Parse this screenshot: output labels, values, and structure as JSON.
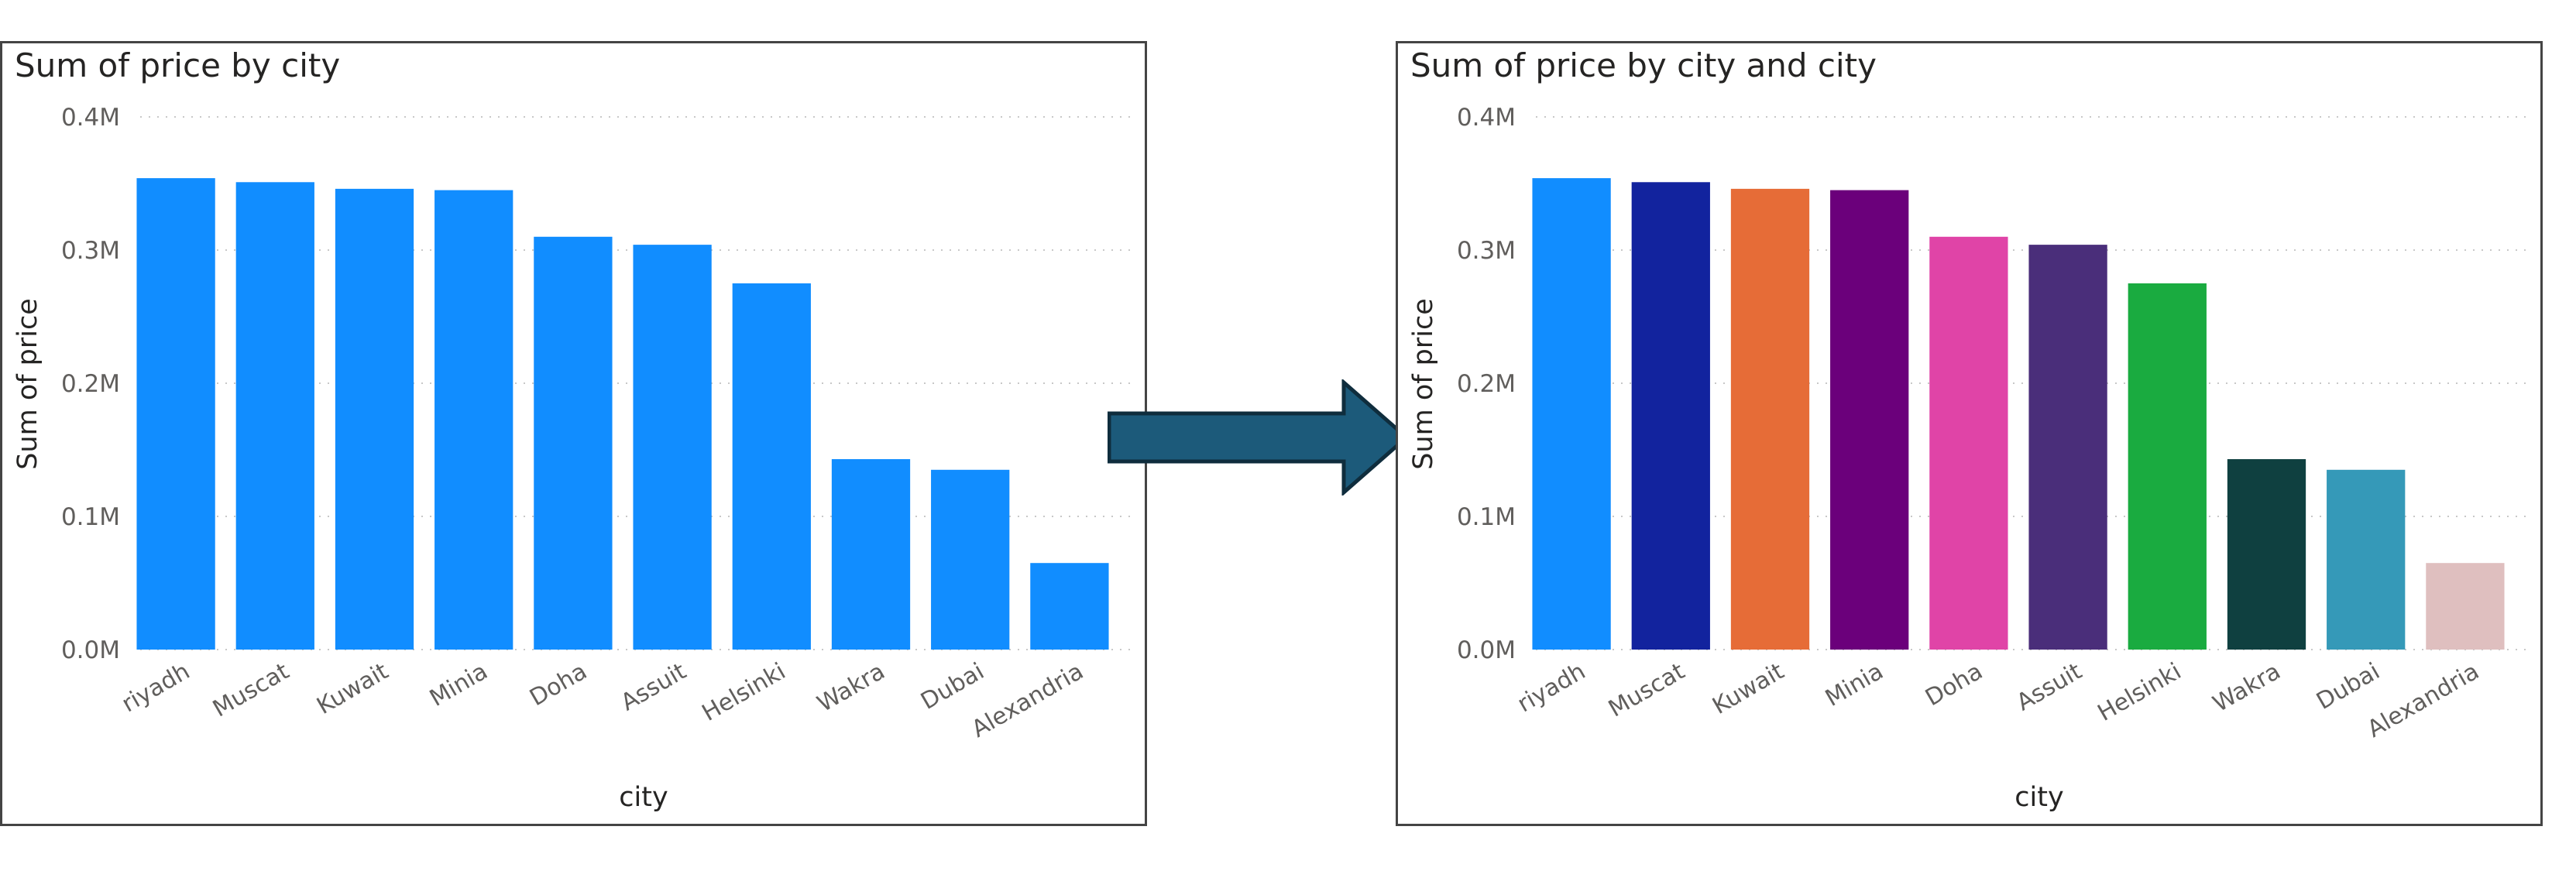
{
  "colors": {
    "arrow_fill": "#1C5A7A",
    "arrow_stroke": "#0F2D3D",
    "gridline": "#C8C8C8",
    "axis_text": "#605E5C",
    "title_text": "#252423"
  },
  "chart_data": [
    {
      "type": "bar",
      "title": "Sum of price by city",
      "xlabel": "city",
      "ylabel": "Sum of price",
      "categories": [
        "riyadh",
        "Muscat",
        "Kuwait",
        "Minia",
        "Doha",
        "Assuit",
        "Helsinki",
        "Wakra",
        "Dubai",
        "Alexandria"
      ],
      "series": [
        {
          "values": [
            354000,
            351000,
            346000,
            345000,
            310000,
            304000,
            275000,
            143000,
            135000,
            65000
          ]
        }
      ],
      "bar_colors": [
        "#118DFF",
        "#118DFF",
        "#118DFF",
        "#118DFF",
        "#118DFF",
        "#118DFF",
        "#118DFF",
        "#118DFF",
        "#118DFF",
        "#118DFF"
      ],
      "ylim": [
        0,
        400000
      ],
      "yticks": [
        "0.0M",
        "0.1M",
        "0.2M",
        "0.3M",
        "0.4M"
      ],
      "grid": true,
      "legend": "none"
    },
    {
      "type": "bar",
      "title": "Sum of price by city and city",
      "xlabel": "city",
      "ylabel": "Sum of price",
      "categories": [
        "riyadh",
        "Muscat",
        "Kuwait",
        "Minia",
        "Doha",
        "Assuit",
        "Helsinki",
        "Wakra",
        "Dubai",
        "Alexandria"
      ],
      "series": [
        {
          "values": [
            354000,
            351000,
            346000,
            345000,
            310000,
            304000,
            275000,
            143000,
            135000,
            65000
          ]
        }
      ],
      "bar_colors": [
        "#118DFF",
        "#12239E",
        "#E66C37",
        "#6B007B",
        "#E044A7",
        "#4A2E7A",
        "#1AAB40",
        "#0F4040",
        "#3599B8",
        "#DFBFBF"
      ],
      "ylim": [
        0,
        400000
      ],
      "yticks": [
        "0.0M",
        "0.1M",
        "0.2M",
        "0.3M",
        "0.4M"
      ],
      "grid": true,
      "legend": "none"
    }
  ]
}
